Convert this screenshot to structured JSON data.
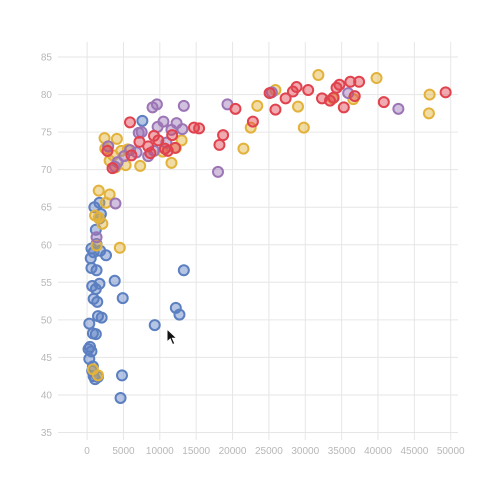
{
  "chart_data": {
    "type": "scatter",
    "title": "",
    "xlabel": "",
    "ylabel": "",
    "xlim": [
      -4000,
      51000
    ],
    "ylim": [
      34,
      87
    ],
    "grid": true,
    "x_ticks": [
      0,
      5000,
      10000,
      15000,
      20000,
      25000,
      30000,
      35000,
      40000,
      45000,
      50000
    ],
    "x_tick_labels": [
      "0",
      "5000",
      "10000",
      "15000",
      "20000",
      "25000",
      "30000",
      "35000",
      "40000",
      "45000",
      "50000"
    ],
    "y_ticks": [
      35,
      40,
      45,
      50,
      55,
      60,
      65,
      70,
      75,
      80,
      85
    ],
    "y_tick_labels": [
      "35",
      "40",
      "45",
      "50",
      "55",
      "60",
      "65",
      "70",
      "75",
      "80",
      "85"
    ],
    "series": [
      {
        "color": "#5b7fc1",
        "points": [
          [
            400,
            46.4
          ],
          [
            200,
            46.1
          ],
          [
            600,
            45.8
          ],
          [
            300,
            44.8
          ],
          [
            700,
            43.2
          ],
          [
            900,
            42.5
          ],
          [
            1100,
            42.1
          ],
          [
            1500,
            42.4
          ],
          [
            800,
            43.8
          ],
          [
            300,
            49.5
          ],
          [
            800,
            48.2
          ],
          [
            1200,
            48.1
          ],
          [
            1500,
            50.5
          ],
          [
            2000,
            50.3
          ],
          [
            900,
            52.8
          ],
          [
            1400,
            52.4
          ],
          [
            700,
            54.5
          ],
          [
            1200,
            54.1
          ],
          [
            1700,
            54.8
          ],
          [
            1300,
            56.6
          ],
          [
            600,
            56.9
          ],
          [
            500,
            58.2
          ],
          [
            900,
            59.0
          ],
          [
            1800,
            59.2
          ],
          [
            600,
            59.5
          ],
          [
            1300,
            60.1
          ],
          [
            2600,
            58.6
          ],
          [
            1200,
            62.0
          ],
          [
            1700,
            63.5
          ],
          [
            1000,
            65.0
          ],
          [
            1700,
            65.6
          ],
          [
            1900,
            64.1
          ],
          [
            3800,
            55.2
          ],
          [
            4900,
            52.9
          ],
          [
            4800,
            42.6
          ],
          [
            4600,
            39.6
          ],
          [
            9300,
            49.3
          ],
          [
            12200,
            51.6
          ],
          [
            12700,
            50.7
          ],
          [
            13300,
            56.6
          ],
          [
            7600,
            76.5
          ]
        ]
      },
      {
        "color": "#e2b23a",
        "points": [
          [
            800,
            43.4
          ],
          [
            1500,
            42.6
          ],
          [
            1300,
            59.9
          ],
          [
            4500,
            59.6
          ],
          [
            1100,
            63.9
          ],
          [
            1600,
            63.6
          ],
          [
            2100,
            62.8
          ],
          [
            2600,
            65.6
          ],
          [
            3100,
            66.7
          ],
          [
            1600,
            67.2
          ],
          [
            2400,
            74.2
          ],
          [
            2900,
            73.1
          ],
          [
            4100,
            74.1
          ],
          [
            2500,
            72.8
          ],
          [
            3600,
            71.9
          ],
          [
            4700,
            72.5
          ],
          [
            3100,
            71.2
          ],
          [
            3900,
            70.3
          ],
          [
            5300,
            70.6
          ],
          [
            5600,
            72.7
          ],
          [
            7300,
            70.5
          ],
          [
            10400,
            72.4
          ],
          [
            11600,
            70.9
          ],
          [
            12200,
            72.9
          ],
          [
            13000,
            73.9
          ],
          [
            21500,
            72.8
          ],
          [
            22500,
            75.6
          ],
          [
            23400,
            78.5
          ],
          [
            25900,
            80.6
          ],
          [
            29000,
            78.4
          ],
          [
            29800,
            75.6
          ],
          [
            31800,
            82.6
          ],
          [
            33800,
            79.5
          ],
          [
            36600,
            79.4
          ],
          [
            39800,
            82.2
          ],
          [
            47000,
            77.5
          ],
          [
            47100,
            80.0
          ]
        ]
      },
      {
        "color": "#9c75b6",
        "points": [
          [
            1300,
            61.0
          ],
          [
            3900,
            65.5
          ],
          [
            2900,
            73.1
          ],
          [
            3800,
            70.4
          ],
          [
            4200,
            71.0
          ],
          [
            5100,
            71.8
          ],
          [
            5900,
            72.6
          ],
          [
            6800,
            72.3
          ],
          [
            7100,
            74.9
          ],
          [
            7500,
            75.0
          ],
          [
            8400,
            71.8
          ],
          [
            9200,
            72.5
          ],
          [
            9000,
            78.3
          ],
          [
            9600,
            78.7
          ],
          [
            9700,
            75.7
          ],
          [
            10500,
            76.4
          ],
          [
            10900,
            73.6
          ],
          [
            11600,
            75.3
          ],
          [
            12300,
            76.2
          ],
          [
            13100,
            75.4
          ],
          [
            13300,
            78.5
          ],
          [
            18000,
            69.7
          ],
          [
            19300,
            78.7
          ],
          [
            25400,
            80.3
          ],
          [
            35900,
            80.2
          ],
          [
            42800,
            78.1
          ]
        ]
      },
      {
        "color": "#e0424e",
        "points": [
          [
            2800,
            72.5
          ],
          [
            3500,
            70.2
          ],
          [
            5900,
            76.3
          ],
          [
            6100,
            71.9
          ],
          [
            7200,
            73.7
          ],
          [
            8400,
            73.1
          ],
          [
            8700,
            72.2
          ],
          [
            9200,
            74.5
          ],
          [
            9800,
            73.9
          ],
          [
            10700,
            72.8
          ],
          [
            11100,
            72.5
          ],
          [
            11700,
            74.6
          ],
          [
            12100,
            72.9
          ],
          [
            14700,
            75.6
          ],
          [
            15400,
            75.5
          ],
          [
            18200,
            73.3
          ],
          [
            18700,
            74.6
          ],
          [
            20400,
            78.1
          ],
          [
            22800,
            76.4
          ],
          [
            25100,
            80.2
          ],
          [
            25900,
            78.0
          ],
          [
            27300,
            79.5
          ],
          [
            28300,
            80.4
          ],
          [
            28800,
            81.0
          ],
          [
            30400,
            80.6
          ],
          [
            32300,
            79.5
          ],
          [
            33400,
            79.2
          ],
          [
            33900,
            79.6
          ],
          [
            34300,
            80.9
          ],
          [
            34700,
            81.3
          ],
          [
            35300,
            78.3
          ],
          [
            36200,
            81.7
          ],
          [
            36800,
            79.8
          ],
          [
            37400,
            81.7
          ],
          [
            40800,
            79.0
          ],
          [
            49300,
            80.3
          ]
        ]
      }
    ]
  }
}
